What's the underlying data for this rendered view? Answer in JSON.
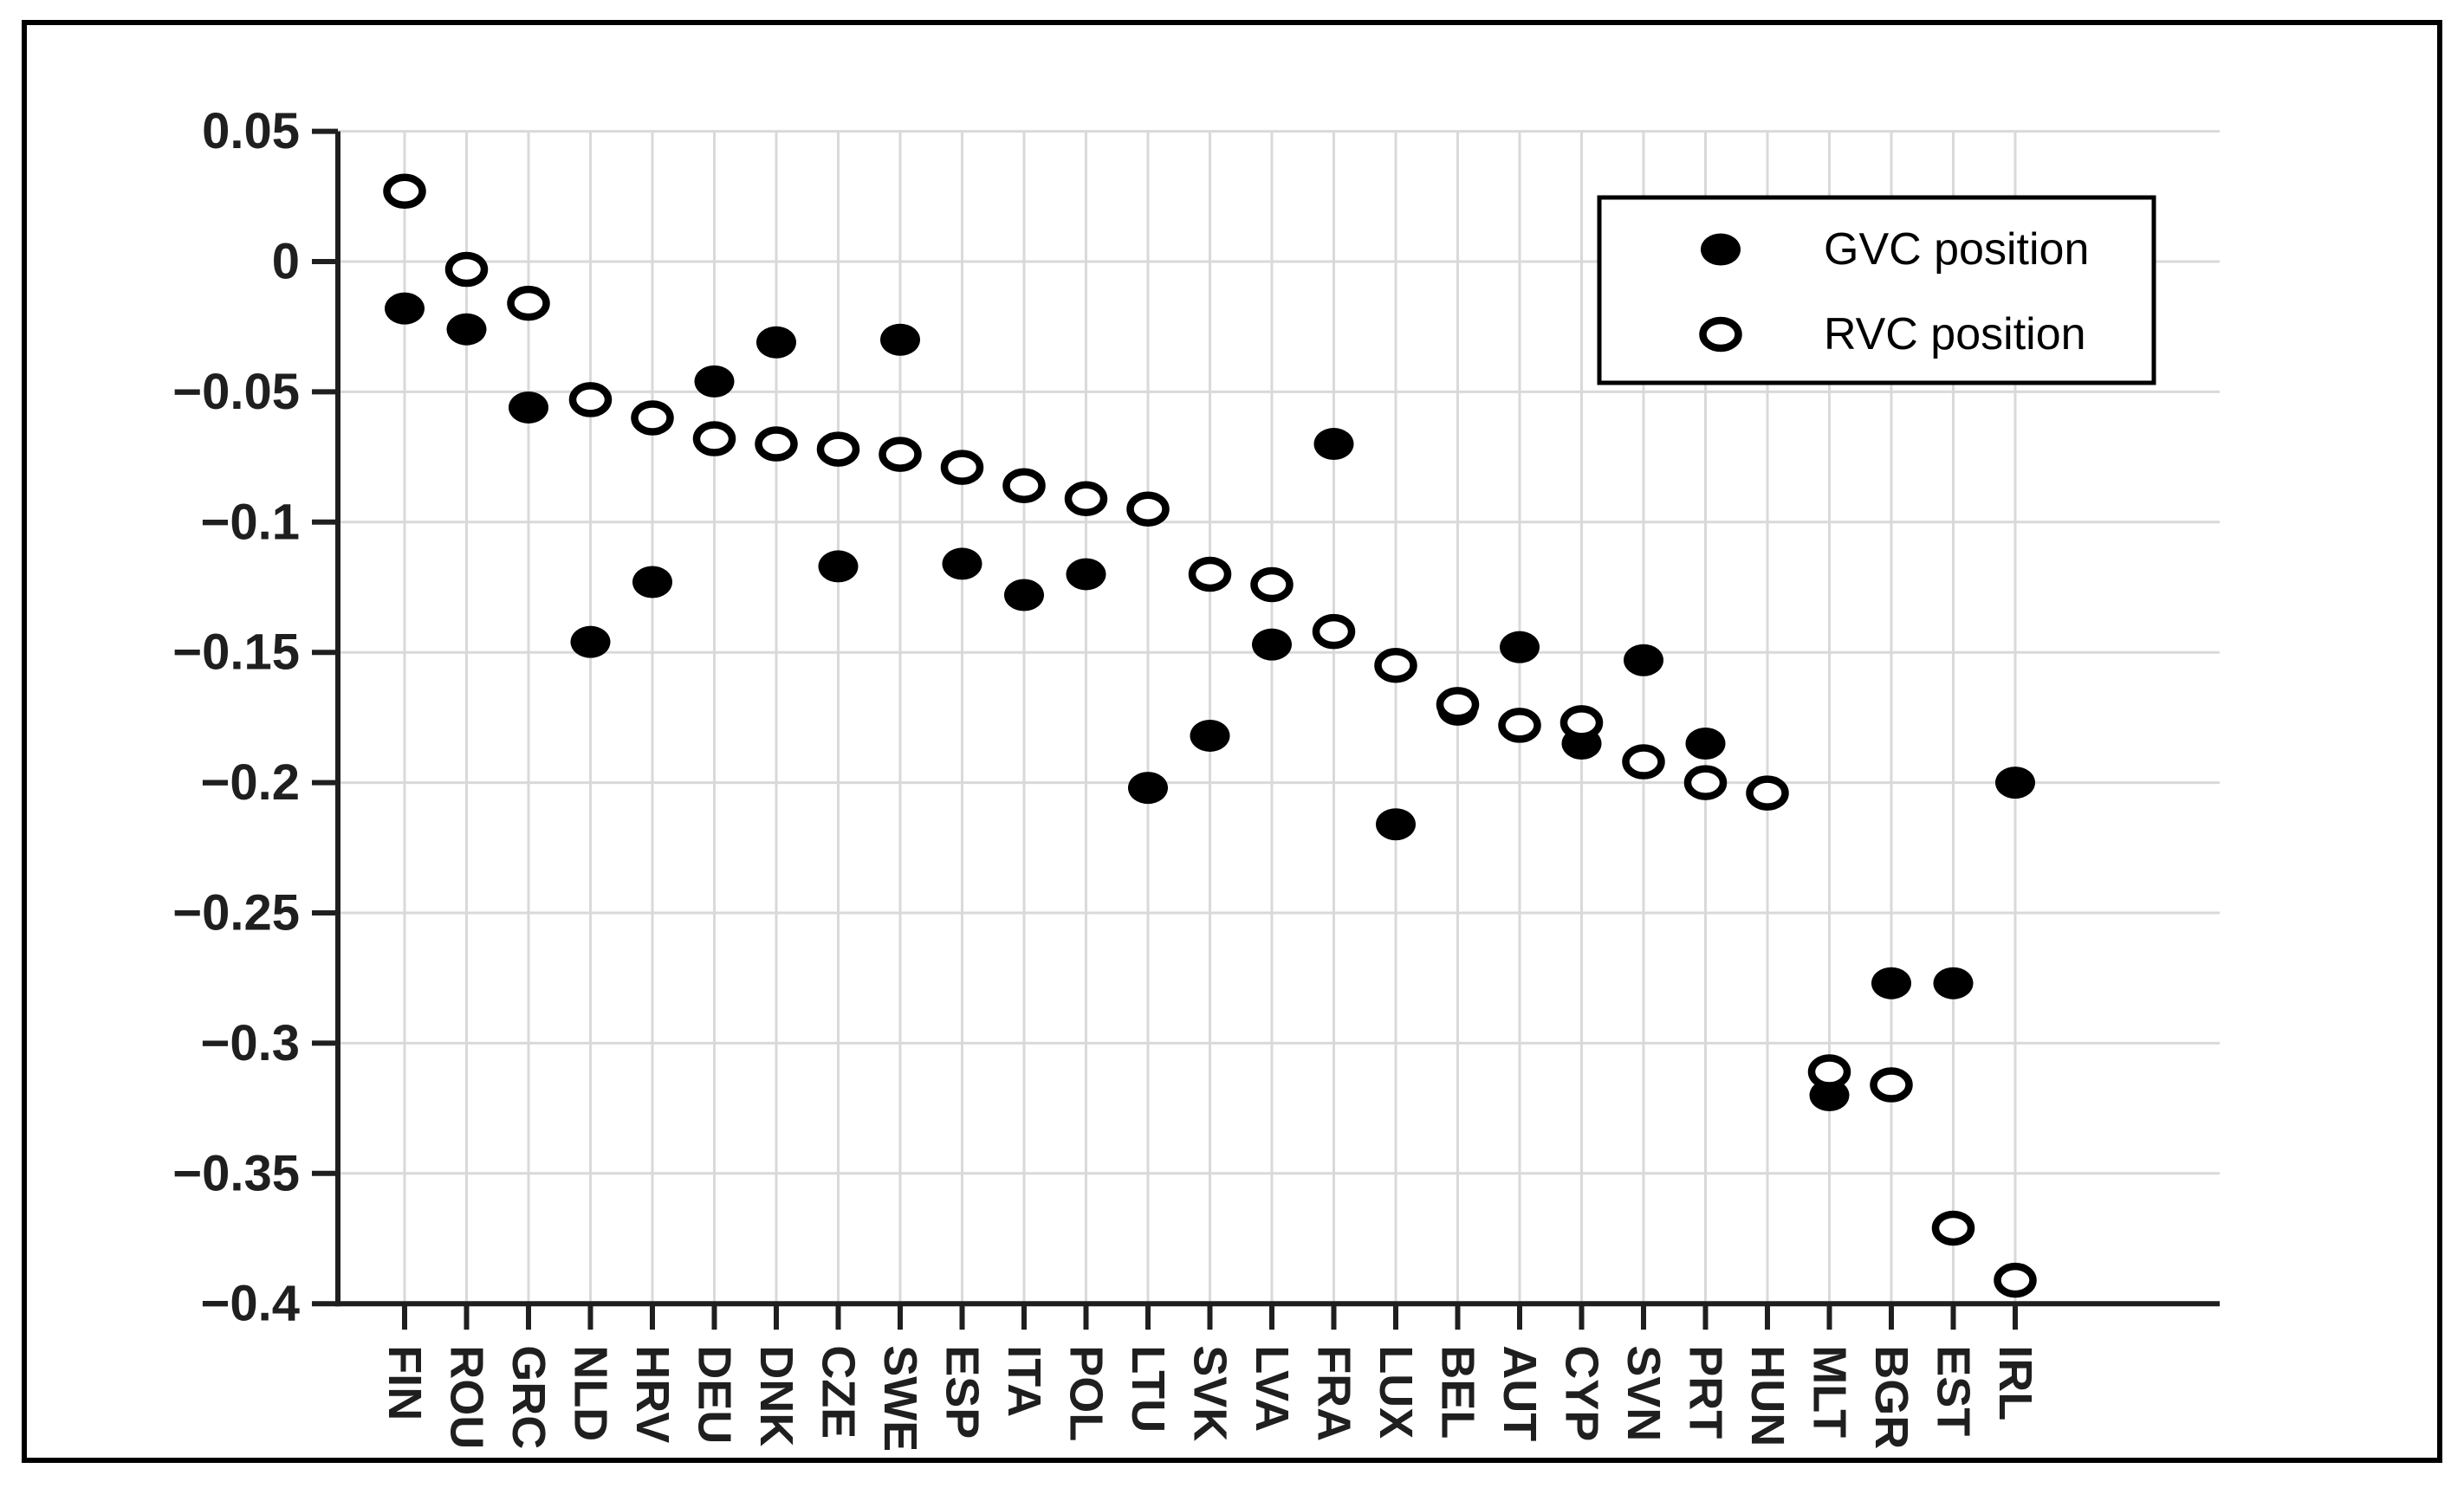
{
  "figure": {
    "background": "#ffffff",
    "border_color": "#000000",
    "axis_color": "#1f1f1f",
    "grid_color": "#d9d9d9",
    "marker_color": "#000000"
  },
  "legend": {
    "entries": [
      {
        "label": "GVC position",
        "marker": "filled-circle"
      },
      {
        "label": "RVC position",
        "marker": "open-circle"
      }
    ],
    "position": "top-right"
  },
  "chart_data": {
    "type": "scatter",
    "title": "",
    "xlabel": "",
    "ylabel": "",
    "grid": true,
    "ylim": [
      -0.4,
      0.05
    ],
    "ytick_values": [
      0.05,
      0,
      -0.05,
      -0.1,
      -0.15,
      -0.2,
      -0.25,
      -0.3,
      -0.35,
      -0.4
    ],
    "ytick_labels": [
      "0.05",
      "0",
      "−0.05",
      "−0.1",
      "−0.15",
      "−0.2",
      "−0.25",
      "−0.3",
      "−0.35",
      "−0.4"
    ],
    "categories": [
      "FIN",
      "ROU",
      "GRC",
      "NLD",
      "HRV",
      "DEU",
      "DNK",
      "CZE",
      "SWE",
      "ESP",
      "ITA",
      "POL",
      "LTU",
      "SVK",
      "LVA",
      "FRA",
      "LUX",
      "BEL",
      "AUT",
      "CYP",
      "SVN",
      "PRT",
      "HUN",
      "MLT",
      "BGR",
      "EST",
      "IRL"
    ],
    "series": [
      {
        "name": "GVC position",
        "marker": "filled-circle",
        "values": [
          -0.018,
          -0.026,
          -0.056,
          -0.146,
          -0.123,
          -0.046,
          -0.031,
          -0.117,
          -0.03,
          -0.116,
          -0.128,
          -0.12,
          -0.202,
          -0.182,
          -0.147,
          -0.07,
          -0.216,
          -0.172,
          -0.148,
          -0.185,
          -0.153,
          -0.185,
          -0.204,
          -0.32,
          -0.277,
          -0.277,
          -0.2
        ]
      },
      {
        "name": "RVC position",
        "marker": "open-circle",
        "values": [
          0.027,
          -0.003,
          -0.016,
          -0.053,
          -0.06,
          -0.068,
          -0.07,
          -0.072,
          -0.074,
          -0.079,
          -0.086,
          -0.091,
          -0.095,
          -0.12,
          -0.124,
          -0.142,
          -0.155,
          -0.17,
          -0.178,
          -0.177,
          -0.192,
          -0.2,
          -0.204,
          -0.311,
          -0.316,
          -0.371,
          -0.391
        ]
      }
    ],
    "legend_position": "top-right"
  }
}
